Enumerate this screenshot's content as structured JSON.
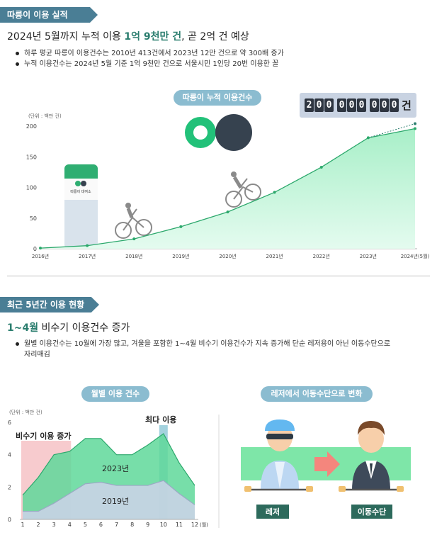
{
  "section1": {
    "ribbon": "따릉이 이용 실적",
    "heading_pre": "2024년 5월까지 누적 이용 ",
    "heading_bold": "1억 9천만 건",
    "heading_post": ", 곧 2억 건 예상",
    "bullets": [
      "하루 평균 따릉이 이용건수는 2010년 413건에서 2023년 12만 건으로 약 300배 증가",
      "누적 이용건수는 2024년 5월 기준 1억 9천만 건으로 서울시민 1인당 20번 이용한 꼴"
    ],
    "chart_pill": "따릉이 누적 이용건수",
    "counter_digits": [
      "2",
      "0",
      "0",
      "0",
      "0",
      "0",
      "0",
      "0",
      "0"
    ],
    "counter_unit": "건",
    "station_label": "따릉이 대여소"
  },
  "section2": {
    "ribbon": "최근 5년간 이용 현황",
    "heading_bold": "1~4월",
    "heading_post": " 비수기 이용건수 증가",
    "bullets": [
      "월별 이용건수는 10월에 가장 많고, 겨울을 포함한 1~4월 비수기 이용건수가 지속 증가해 단순 레저용이 아닌 이동수단으로 자리매김"
    ],
    "chart_pill": "월별 이용 건수",
    "right_pill": "레저에서 이동수단으로 변화",
    "label_leisure": "레저",
    "label_transport": "이동수단"
  },
  "chart_data": [
    {
      "type": "area",
      "unit_label": "(단위 : 백만 건)",
      "x": [
        "2016년",
        "2017년",
        "2018년",
        "2019년",
        "2020년",
        "2021년",
        "2022년",
        "2023년",
        "2024년(5월)"
      ],
      "values": [
        1,
        5,
        16,
        36,
        60,
        92,
        133,
        181,
        196
      ],
      "forecast": [
        181,
        204
      ],
      "ylim": [
        0,
        200
      ],
      "yticks": [
        0,
        50,
        100,
        150,
        200
      ],
      "grid": false
    },
    {
      "type": "area",
      "unit_label": "(단위 : 백만 건)",
      "x": [
        "1",
        "2",
        "3",
        "4",
        "5",
        "6",
        "7",
        "8",
        "9",
        "10",
        "11",
        "12"
      ],
      "x_unit": "(월)",
      "ylim": [
        0,
        6
      ],
      "yticks": [
        0,
        2,
        4,
        6
      ],
      "series": [
        {
          "name": "2023년",
          "values": [
            1.5,
            2.6,
            4.0,
            4.2,
            5.0,
            5.0,
            4.0,
            4.0,
            4.6,
            5.3,
            3.5,
            2.1
          ],
          "color": "#5fd89a"
        },
        {
          "name": "2019년",
          "values": [
            0.5,
            0.5,
            1.0,
            1.6,
            2.2,
            2.3,
            2.1,
            2.1,
            2.1,
            2.4,
            1.6,
            0.9
          ],
          "color": "#c9d3e6"
        }
      ],
      "annotations": [
        "비수기 이용 증가",
        "최다 이용"
      ],
      "highlight_months": [
        "1",
        "2",
        "3",
        "4"
      ],
      "peak_month": "10"
    }
  ]
}
